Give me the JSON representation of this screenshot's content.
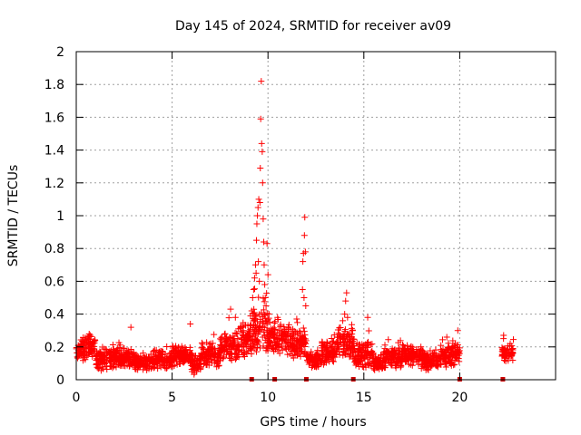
{
  "chart_data": {
    "type": "scatter",
    "title": "Day 145 of 2024, SRMTID for receiver av09",
    "xlabel": "GPS time / hours",
    "ylabel": "SRMTID / TECUs",
    "xlim": [
      0,
      25
    ],
    "ylim": [
      0,
      2
    ],
    "x_ticks": [
      "0",
      "5",
      "10",
      "15",
      "20"
    ],
    "x_tick_values": [
      0,
      5,
      10,
      15,
      20
    ],
    "y_ticks": [
      "0",
      "0.2",
      "0.4",
      "0.6",
      "0.8",
      "1",
      "1.2",
      "1.4",
      "1.6",
      "1.8",
      "2"
    ],
    "y_tick_values": [
      0,
      0.2,
      0.4,
      0.6,
      0.8,
      1.0,
      1.2,
      1.4,
      1.6,
      1.8,
      2.0
    ],
    "grid": true,
    "marker": "+",
    "series_color": "#ff0000",
    "gap_marker_color": "#cc0000",
    "gap_markers_x": [
      9.15,
      10.35,
      12.0,
      14.45,
      20.0,
      22.25
    ],
    "background_band": [
      {
        "x0": 0.0,
        "x1": 0.5,
        "base": 0.18,
        "spread": 0.06
      },
      {
        "x0": 0.5,
        "x1": 1.0,
        "base": 0.2,
        "spread": 0.06
      },
      {
        "x0": 1.0,
        "x1": 2.0,
        "base": 0.12,
        "spread": 0.05
      },
      {
        "x0": 2.0,
        "x1": 3.0,
        "base": 0.13,
        "spread": 0.05
      },
      {
        "x0": 3.0,
        "x1": 4.0,
        "base": 0.11,
        "spread": 0.04
      },
      {
        "x0": 4.0,
        "x1": 5.0,
        "base": 0.12,
        "spread": 0.05
      },
      {
        "x0": 5.0,
        "x1": 6.0,
        "base": 0.14,
        "spread": 0.05
      },
      {
        "x0": 6.0,
        "x1": 6.5,
        "base": 0.09,
        "spread": 0.05
      },
      {
        "x0": 6.5,
        "x1": 7.5,
        "base": 0.15,
        "spread": 0.06
      },
      {
        "x0": 7.5,
        "x1": 8.5,
        "base": 0.2,
        "spread": 0.07
      },
      {
        "x0": 8.5,
        "x1": 9.2,
        "base": 0.24,
        "spread": 0.08
      },
      {
        "x0": 9.2,
        "x1": 10.0,
        "base": 0.3,
        "spread": 0.1
      },
      {
        "x0": 10.0,
        "x1": 11.0,
        "base": 0.25,
        "spread": 0.07
      },
      {
        "x0": 11.0,
        "x1": 12.0,
        "base": 0.22,
        "spread": 0.07
      },
      {
        "x0": 12.0,
        "x1": 12.8,
        "base": 0.12,
        "spread": 0.04
      },
      {
        "x0": 12.8,
        "x1": 13.6,
        "base": 0.16,
        "spread": 0.06
      },
      {
        "x0": 13.6,
        "x1": 14.5,
        "base": 0.22,
        "spread": 0.07
      },
      {
        "x0": 14.5,
        "x1": 15.5,
        "base": 0.15,
        "spread": 0.06
      },
      {
        "x0": 15.5,
        "x1": 16.0,
        "base": 0.1,
        "spread": 0.04
      },
      {
        "x0": 16.0,
        "x1": 17.0,
        "base": 0.13,
        "spread": 0.05
      },
      {
        "x0": 17.0,
        "x1": 18.0,
        "base": 0.15,
        "spread": 0.05
      },
      {
        "x0": 18.0,
        "x1": 19.0,
        "base": 0.12,
        "spread": 0.05
      },
      {
        "x0": 19.0,
        "x1": 20.0,
        "base": 0.15,
        "spread": 0.06
      },
      {
        "x0": 22.2,
        "x1": 22.8,
        "base": 0.16,
        "spread": 0.05
      }
    ],
    "peak_points": [
      {
        "x": 9.15,
        "y": 0.42
      },
      {
        "x": 9.2,
        "y": 0.5
      },
      {
        "x": 9.25,
        "y": 0.55
      },
      {
        "x": 9.3,
        "y": 0.62
      },
      {
        "x": 9.35,
        "y": 0.7
      },
      {
        "x": 9.38,
        "y": 0.65
      },
      {
        "x": 9.4,
        "y": 0.85
      },
      {
        "x": 9.42,
        "y": 0.95
      },
      {
        "x": 9.45,
        "y": 1.0
      },
      {
        "x": 9.48,
        "y": 1.05
      },
      {
        "x": 9.5,
        "y": 0.72
      },
      {
        "x": 9.52,
        "y": 1.1
      },
      {
        "x": 9.55,
        "y": 0.6
      },
      {
        "x": 9.58,
        "y": 1.08
      },
      {
        "x": 9.6,
        "y": 1.29
      },
      {
        "x": 9.62,
        "y": 1.59
      },
      {
        "x": 9.65,
        "y": 1.82
      },
      {
        "x": 9.67,
        "y": 1.44
      },
      {
        "x": 9.7,
        "y": 1.39
      },
      {
        "x": 9.72,
        "y": 1.2
      },
      {
        "x": 9.75,
        "y": 0.98
      },
      {
        "x": 9.78,
        "y": 0.84
      },
      {
        "x": 9.8,
        "y": 0.7
      },
      {
        "x": 9.83,
        "y": 0.58
      },
      {
        "x": 9.86,
        "y": 0.5
      },
      {
        "x": 9.9,
        "y": 0.45
      },
      {
        "x": 9.95,
        "y": 0.83
      },
      {
        "x": 10.0,
        "y": 0.64
      },
      {
        "x": 10.05,
        "y": 0.4
      },
      {
        "x": 10.1,
        "y": 0.35
      },
      {
        "x": 11.8,
        "y": 0.55
      },
      {
        "x": 11.82,
        "y": 0.72
      },
      {
        "x": 11.85,
        "y": 0.77
      },
      {
        "x": 11.88,
        "y": 0.5
      },
      {
        "x": 11.9,
        "y": 0.88
      },
      {
        "x": 11.92,
        "y": 0.99
      },
      {
        "x": 11.95,
        "y": 0.78
      },
      {
        "x": 11.97,
        "y": 0.45
      },
      {
        "x": 13.9,
        "y": 0.36
      },
      {
        "x": 14.0,
        "y": 0.4
      },
      {
        "x": 14.05,
        "y": 0.48
      },
      {
        "x": 14.1,
        "y": 0.53
      },
      {
        "x": 14.15,
        "y": 0.38
      },
      {
        "x": 2.85,
        "y": 0.32
      },
      {
        "x": 5.95,
        "y": 0.34
      },
      {
        "x": 8.05,
        "y": 0.43
      },
      {
        "x": 8.3,
        "y": 0.38
      },
      {
        "x": 10.5,
        "y": 0.38
      },
      {
        "x": 11.5,
        "y": 0.37
      },
      {
        "x": 15.2,
        "y": 0.38
      },
      {
        "x": 19.9,
        "y": 0.3
      }
    ]
  }
}
